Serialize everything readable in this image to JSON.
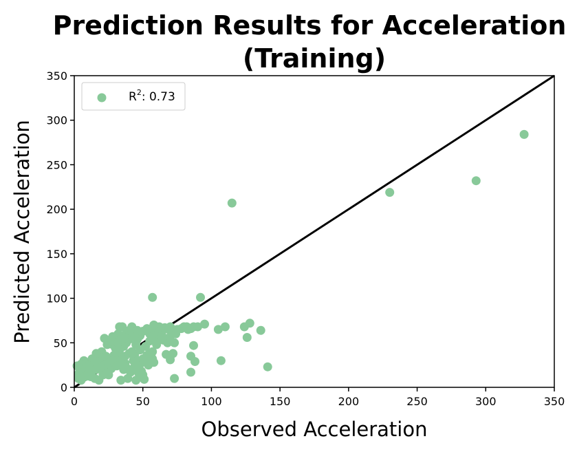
{
  "chart_data": {
    "type": "scatter",
    "title_line1": "Prediction Results for Acceleration",
    "title_line2": "(Training)",
    "xlabel": "Observed Acceleration",
    "ylabel": "Predicted Acceleration",
    "xlim": [
      0,
      350
    ],
    "ylim": [
      0,
      350
    ],
    "xticks": [
      0,
      50,
      100,
      150,
      200,
      250,
      300,
      350
    ],
    "yticks": [
      0,
      50,
      100,
      150,
      200,
      250,
      300,
      350
    ],
    "grid": false,
    "legend_placement": "top-left",
    "legend": {
      "label_prefix": "R",
      "label_sup": "2",
      "label_suffix": ": 0.73"
    },
    "marker_color": "#88c999",
    "line_color": "#000000",
    "reference_line": [
      [
        0,
        0
      ],
      [
        350,
        350
      ]
    ],
    "points": [
      [
        115,
        207
      ],
      [
        230,
        219
      ],
      [
        293,
        232
      ],
      [
        328,
        284
      ],
      [
        57,
        101
      ],
      [
        92,
        101
      ],
      [
        141,
        23
      ],
      [
        107,
        30
      ],
      [
        73,
        10
      ],
      [
        85,
        17
      ],
      [
        88,
        29
      ],
      [
        87,
        47
      ],
      [
        85,
        35
      ],
      [
        136,
        64
      ],
      [
        128,
        72
      ],
      [
        124,
        68
      ],
      [
        126,
        56
      ],
      [
        110,
        68
      ],
      [
        105,
        65
      ],
      [
        95,
        71
      ],
      [
        87,
        68
      ],
      [
        83,
        65
      ],
      [
        80,
        68
      ],
      [
        75,
        65
      ],
      [
        72,
        62
      ],
      [
        70,
        68
      ],
      [
        68,
        50
      ],
      [
        73,
        50
      ],
      [
        67,
        37
      ],
      [
        70,
        31
      ],
      [
        72,
        38
      ],
      [
        65,
        53
      ],
      [
        60,
        55
      ],
      [
        62,
        68
      ],
      [
        58,
        70
      ],
      [
        57,
        62
      ],
      [
        55,
        60
      ],
      [
        53,
        66
      ],
      [
        50,
        63
      ],
      [
        48,
        58
      ],
      [
        46,
        54
      ],
      [
        44,
        60
      ],
      [
        42,
        68
      ],
      [
        40,
        54
      ],
      [
        38,
        50
      ],
      [
        36,
        46
      ],
      [
        35,
        68
      ],
      [
        33,
        68
      ],
      [
        32,
        60
      ],
      [
        30,
        55
      ],
      [
        28,
        57
      ],
      [
        26,
        50
      ],
      [
        24,
        48
      ],
      [
        22,
        55
      ],
      [
        20,
        40
      ],
      [
        18,
        36
      ],
      [
        16,
        38
      ],
      [
        14,
        30
      ],
      [
        12,
        28
      ],
      [
        10,
        24
      ],
      [
        8,
        20
      ],
      [
        6,
        22
      ],
      [
        4,
        18
      ],
      [
        3,
        15
      ],
      [
        2,
        24
      ],
      [
        5,
        26
      ],
      [
        7,
        30
      ],
      [
        9,
        27
      ],
      [
        11,
        25
      ],
      [
        13,
        32
      ],
      [
        15,
        28
      ],
      [
        17,
        24
      ],
      [
        19,
        30
      ],
      [
        21,
        33
      ],
      [
        23,
        35
      ],
      [
        25,
        14
      ],
      [
        27,
        21
      ],
      [
        29,
        36
      ],
      [
        31,
        38
      ],
      [
        33,
        42
      ],
      [
        34,
        8
      ],
      [
        36,
        20
      ],
      [
        37,
        27
      ],
      [
        39,
        10
      ],
      [
        41,
        17
      ],
      [
        43,
        30
      ],
      [
        45,
        8
      ],
      [
        47,
        25
      ],
      [
        49,
        18
      ],
      [
        51,
        9
      ],
      [
        52,
        30
      ],
      [
        54,
        25
      ],
      [
        56,
        35
      ],
      [
        57,
        40
      ],
      [
        58,
        28
      ],
      [
        60,
        48
      ],
      [
        62,
        56
      ],
      [
        64,
        63
      ],
      [
        66,
        67
      ],
      [
        69,
        65
      ],
      [
        12,
        12
      ],
      [
        15,
        10
      ],
      [
        18,
        8
      ],
      [
        21,
        14
      ],
      [
        24,
        20
      ],
      [
        27,
        24
      ],
      [
        30,
        28
      ],
      [
        32,
        34
      ],
      [
        34,
        30
      ],
      [
        37,
        35
      ],
      [
        40,
        38
      ],
      [
        42,
        40
      ],
      [
        44,
        36
      ],
      [
        46,
        30
      ],
      [
        48,
        26
      ],
      [
        50,
        32
      ],
      [
        53,
        36
      ],
      [
        55,
        38
      ],
      [
        57,
        32
      ],
      [
        3,
        10
      ],
      [
        5,
        8
      ],
      [
        8,
        12
      ],
      [
        10,
        15
      ],
      [
        13,
        18
      ],
      [
        16,
        20
      ],
      [
        19,
        22
      ],
      [
        22,
        25
      ],
      [
        25,
        27
      ],
      [
        28,
        30
      ],
      [
        31,
        24
      ],
      [
        35,
        26
      ],
      [
        38,
        22
      ],
      [
        41,
        20
      ],
      [
        44,
        23
      ],
      [
        47,
        16
      ],
      [
        50,
        14
      ],
      [
        45,
        48
      ],
      [
        48,
        42
      ],
      [
        52,
        46
      ],
      [
        55,
        52
      ],
      [
        58,
        58
      ],
      [
        61,
        60
      ],
      [
        64,
        58
      ],
      [
        67,
        54
      ],
      [
        70,
        57
      ],
      [
        74,
        60
      ],
      [
        78,
        66
      ],
      [
        82,
        68
      ],
      [
        85,
        66
      ],
      [
        90,
        68
      ],
      [
        28,
        48
      ],
      [
        30,
        44
      ],
      [
        32,
        50
      ],
      [
        34,
        54
      ],
      [
        36,
        58
      ],
      [
        38,
        62
      ],
      [
        40,
        64
      ],
      [
        42,
        62
      ],
      [
        44,
        58
      ],
      [
        46,
        64
      ]
    ]
  }
}
